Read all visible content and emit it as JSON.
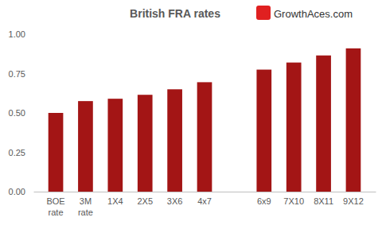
{
  "chart_data": {
    "type": "bar",
    "title": "British FRA rates",
    "annotations": [
      "GrowthAces.com"
    ],
    "categories": [
      "BOE rate",
      "3M rate",
      "1X4",
      "2X5",
      "3X6",
      "4x7",
      null,
      "6x9",
      "7X10",
      "8X11",
      "9X12"
    ],
    "values": [
      0.5,
      0.575,
      0.59,
      0.615,
      0.65,
      0.695,
      null,
      0.775,
      0.82,
      0.865,
      0.91
    ],
    "color": "#a31515",
    "ylim": [
      0,
      1
    ],
    "yticks": [
      {
        "value": 0,
        "label": "0.00"
      },
      {
        "value": 0.25,
        "label": "0.25"
      },
      {
        "value": 0.5,
        "label": "0.50"
      },
      {
        "value": 0.75,
        "label": "0.75"
      },
      {
        "value": 1,
        "label": "1.00"
      }
    ],
    "grid": false
  }
}
